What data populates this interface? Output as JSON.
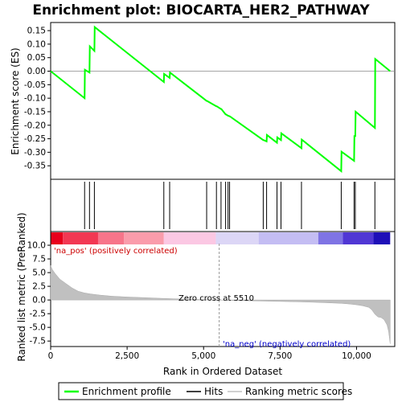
{
  "chart_data": {
    "title": "Enrichment plot: BIOCARTA_HER2_PATHWAY",
    "type": "line",
    "xlabel": "Rank in Ordered Dataset",
    "xlim": [
      0,
      11250
    ],
    "x_ticks": [
      0,
      2500,
      5000,
      7500,
      10000
    ],
    "x_tick_labels": [
      "0",
      "2,500",
      "5,000",
      "7,500",
      "10,000"
    ],
    "es_panel": {
      "ylabel": "Enrichment score (ES)",
      "ylim": [
        -0.4,
        0.18
      ],
      "y_ticks": [
        0.15,
        0.1,
        0.05,
        0.0,
        -0.05,
        -0.1,
        -0.15,
        -0.2,
        -0.25,
        -0.3,
        -0.35
      ],
      "y_tick_labels": [
        "0.15",
        "0.10",
        "0.05",
        "0.00",
        "-0.05",
        "-0.10",
        "-0.15",
        "-0.20",
        "-0.25",
        "-0.30",
        "-0.35"
      ],
      "series": [
        {
          "name": "Enrichment profile",
          "color": "#00ff00",
          "x": [
            0,
            1110,
            1120,
            1270,
            1280,
            1430,
            1440,
            3700,
            3710,
            3890,
            3900,
            5100,
            5110,
            5420,
            5430,
            5570,
            5580,
            5720,
            5730,
            5800,
            5810,
            5850,
            5860,
            6950,
            6960,
            7060,
            7070,
            7400,
            7410,
            7530,
            7540,
            8200,
            8210,
            9500,
            9510,
            9920,
            9930,
            9960,
            9970,
            10600,
            10610,
            11100
          ],
          "y": [
            0.0,
            -0.1,
            0.005,
            -0.005,
            0.092,
            0.075,
            0.163,
            -0.04,
            -0.01,
            -0.025,
            -0.005,
            -0.11,
            -0.11,
            -0.13,
            -0.13,
            -0.14,
            -0.14,
            -0.16,
            -0.16,
            -0.165,
            -0.165,
            -0.167,
            -0.167,
            -0.255,
            -0.255,
            -0.26,
            -0.236,
            -0.265,
            -0.245,
            -0.255,
            -0.23,
            -0.285,
            -0.253,
            -0.37,
            -0.298,
            -0.332,
            -0.24,
            -0.24,
            -0.15,
            -0.21,
            0.045,
            0.0
          ]
        }
      ]
    },
    "hits": {
      "name": "Hits",
      "positions": [
        1110,
        1270,
        1430,
        3700,
        3890,
        5100,
        5420,
        5570,
        5720,
        5800,
        5850,
        6950,
        7060,
        7400,
        7530,
        8200,
        9500,
        9920,
        9960,
        10600
      ]
    },
    "metric_panel": {
      "ylabel": "Ranked list metric (PreRanked)",
      "ylim": [
        -8.5,
        12.5
      ],
      "y_ticks": [
        10.0,
        7.5,
        5.0,
        2.5,
        0.0,
        -2.5,
        -5.0,
        -7.5
      ],
      "y_tick_labels": [
        "10.0",
        "7.5",
        "5.0",
        "2.5",
        "0.0",
        "-2.5",
        "-5.0",
        "-7.5"
      ],
      "series_name": "Ranking metric scores",
      "profile_x": [
        0,
        50,
        150,
        300,
        500,
        700,
        900,
        1100,
        1300,
        1600,
        2000,
        2500,
        3000,
        3500,
        4000,
        4500,
        5000,
        5510,
        6000,
        6500,
        7000,
        7500,
        8000,
        8500,
        9000,
        9500,
        9800,
        10000,
        10200,
        10400,
        10500,
        10600,
        10700,
        10800,
        10900,
        11000,
        11050,
        11100
      ],
      "profile_y": [
        6.3,
        5.6,
        4.8,
        3.8,
        3.0,
        2.2,
        1.6,
        1.3,
        1.1,
        0.9,
        0.7,
        0.55,
        0.45,
        0.32,
        0.22,
        0.14,
        0.07,
        0.0,
        -0.08,
        -0.14,
        -0.2,
        -0.26,
        -0.32,
        -0.4,
        -0.5,
        -0.62,
        -0.75,
        -0.88,
        -1.05,
        -1.35,
        -1.8,
        -2.6,
        -3.1,
        -3.2,
        -3.6,
        -4.6,
        -5.8,
        -8.0
      ],
      "zero_cross_label": "Zero cross at 5510",
      "zero_cross": 5510,
      "pos_label": "'na_pos' (positively correlated)",
      "neg_label": "'na_neg' (negatively correlated)"
    },
    "heat_bar": {
      "segments": [
        {
          "end": 400,
          "color": "#e8001c"
        },
        {
          "end": 1550,
          "color": "#f23853"
        },
        {
          "end": 2400,
          "color": "#f7758a"
        },
        {
          "end": 3700,
          "color": "#fa9cab"
        },
        {
          "end": 5400,
          "color": "#fbc8e3"
        },
        {
          "end": 6800,
          "color": "#dcd6f6"
        },
        {
          "end": 8750,
          "color": "#c4bdf3"
        },
        {
          "end": 9550,
          "color": "#7f74e4"
        },
        {
          "end": 10550,
          "color": "#5037d4"
        },
        {
          "end": 11100,
          "color": "#1e0fb8"
        }
      ]
    }
  },
  "legend": {
    "items": [
      {
        "label": "Enrichment profile",
        "color": "#00ff00"
      },
      {
        "label": "Hits",
        "color": "#000000"
      },
      {
        "label": "Ranking metric scores",
        "color": "#c0c0c0"
      }
    ]
  }
}
